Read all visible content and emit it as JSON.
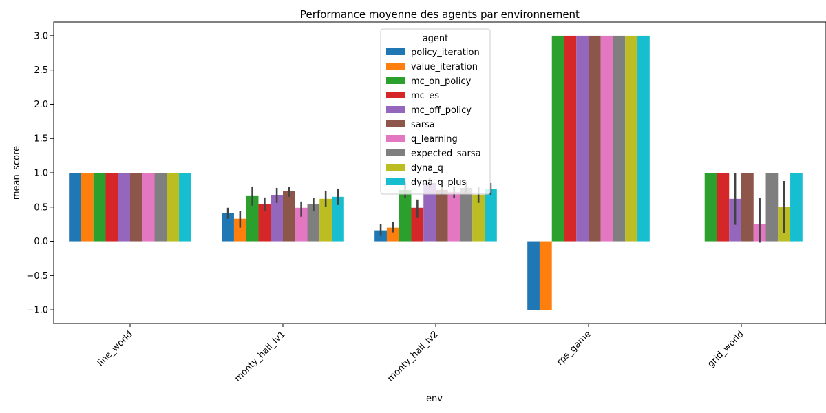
{
  "chart_data": {
    "type": "bar",
    "title": "Performance moyenne des agents par environnement",
    "xlabel": "env",
    "ylabel": "mean_score",
    "ylim": [
      -1.2,
      3.2
    ],
    "yticks": [
      -1.0,
      -0.5,
      0.0,
      0.5,
      1.0,
      1.5,
      2.0,
      2.5,
      3.0
    ],
    "grid": false,
    "legend": {
      "title": "agent",
      "placement": "upper-center"
    },
    "categories": [
      "line_world",
      "monty_hall_lv1",
      "monty_hall_lv2",
      "rps_game",
      "grid_world"
    ],
    "series": [
      {
        "name": "policy_iteration",
        "color": "#1f77b4",
        "values": [
          1.0,
          0.41,
          0.16,
          -1.0,
          null
        ],
        "errors": [
          null,
          [
            0.33,
            0.49
          ],
          [
            0.08,
            0.25
          ],
          null,
          null
        ]
      },
      {
        "name": "value_iteration",
        "color": "#ff7f0e",
        "values": [
          1.0,
          0.33,
          0.2,
          -1.0,
          null
        ],
        "errors": [
          null,
          [
            0.2,
            0.44
          ],
          [
            0.13,
            0.28
          ],
          null,
          null
        ]
      },
      {
        "name": "mc_on_policy",
        "color": "#2ca02c",
        "values": [
          1.0,
          0.66,
          0.75,
          3.0,
          1.0
        ],
        "errors": [
          null,
          [
            0.52,
            0.8
          ],
          [
            0.64,
            0.86
          ],
          null,
          null
        ]
      },
      {
        "name": "mc_es",
        "color": "#d62728",
        "values": [
          1.0,
          0.54,
          0.49,
          3.0,
          1.0
        ],
        "errors": [
          null,
          [
            0.44,
            0.64
          ],
          [
            0.35,
            0.61
          ],
          null,
          null
        ]
      },
      {
        "name": "mc_off_policy",
        "color": "#9467bd",
        "values": [
          1.0,
          0.67,
          0.85,
          3.0,
          0.62
        ],
        "errors": [
          null,
          [
            0.56,
            0.78
          ],
          [
            0.78,
            0.92
          ],
          null,
          [
            0.24,
            1.0
          ]
        ]
      },
      {
        "name": "sarsa",
        "color": "#8c564b",
        "values": [
          1.0,
          0.73,
          0.75,
          3.0,
          1.0
        ],
        "errors": [
          null,
          [
            0.65,
            0.79
          ],
          [
            0.67,
            0.82
          ],
          null,
          null
        ]
      },
      {
        "name": "q_learning",
        "color": "#e377c2",
        "values": [
          1.0,
          0.49,
          0.72,
          3.0,
          0.25
        ],
        "errors": [
          null,
          [
            0.36,
            0.58
          ],
          [
            0.63,
            0.8
          ],
          null,
          [
            -0.02,
            0.63
          ]
        ]
      },
      {
        "name": "expected_sarsa",
        "color": "#7f7f7f",
        "values": [
          1.0,
          0.54,
          0.78,
          3.0,
          1.0
        ],
        "errors": [
          null,
          [
            0.44,
            0.63
          ],
          [
            0.71,
            0.86
          ],
          null,
          null
        ]
      },
      {
        "name": "dyna_q",
        "color": "#bcbd22",
        "values": [
          1.0,
          0.62,
          0.68,
          3.0,
          0.5
        ],
        "errors": [
          null,
          [
            0.5,
            0.74
          ],
          [
            0.56,
            0.79
          ],
          null,
          [
            0.12,
            0.88
          ]
        ]
      },
      {
        "name": "dyna_q_plus",
        "color": "#17becf",
        "values": [
          1.0,
          0.65,
          0.76,
          3.0,
          1.0
        ],
        "errors": [
          null,
          [
            0.53,
            0.77
          ],
          [
            0.68,
            0.85
          ],
          null,
          null
        ]
      }
    ]
  }
}
